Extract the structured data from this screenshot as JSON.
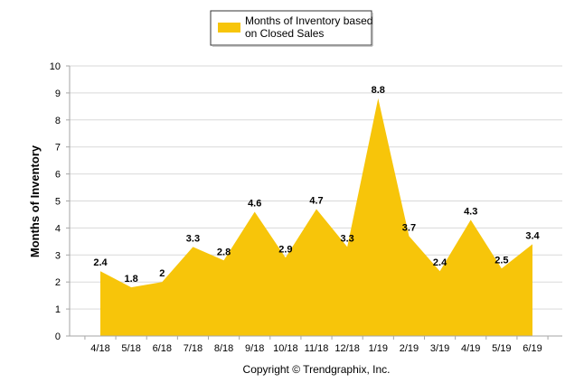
{
  "chart_data": {
    "type": "area",
    "categories": [
      "4/18",
      "5/18",
      "6/18",
      "7/18",
      "8/18",
      "9/18",
      "10/18",
      "11/18",
      "12/18",
      "1/19",
      "2/19",
      "3/19",
      "4/19",
      "5/19",
      "6/19"
    ],
    "series": [
      {
        "name": "Months of Inventory based on Closed Sales",
        "values": [
          2.4,
          1.8,
          2,
          3.3,
          2.8,
          4.6,
          2.9,
          4.7,
          3.3,
          8.8,
          3.7,
          2.4,
          4.3,
          2.5,
          3.4
        ],
        "labels": [
          "2.4",
          "1.8",
          "2",
          "3.3",
          "2.8",
          "4.6",
          "2.9",
          "4.7",
          "3.3",
          "8.8",
          "3.7",
          "2.4",
          "4.3",
          "2.5",
          "3.4"
        ]
      }
    ],
    "legend": {
      "line1": "Months of Inventory based",
      "line2": "on Closed Sales",
      "position": "top-center"
    },
    "ylabel": "Months of Inventory",
    "xlabel": "",
    "ylim": [
      0,
      10
    ],
    "yticks": [
      "0",
      "1",
      "2",
      "3",
      "4",
      "5",
      "6",
      "7",
      "8",
      "9",
      "10"
    ],
    "grid": true,
    "colors": {
      "area": "#F7C50A",
      "grid": "#D9D9D9",
      "axis": "#A6A6A6"
    }
  },
  "footer": {
    "copyright": "Copyright © Trendgraphix, Inc."
  }
}
